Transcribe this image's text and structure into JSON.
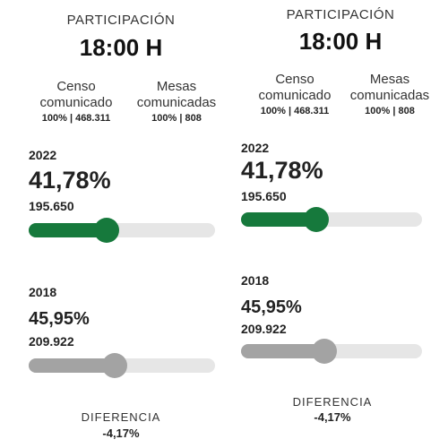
{
  "colors": {
    "current": "#16793c",
    "previous": "#a3a3a3",
    "track": "#e6e6e6"
  },
  "panels": [
    {
      "title": "PARTICIPACIÓN",
      "time": "18:00 H",
      "censo": {
        "label_line1": "Censo",
        "label_line2": "comunicado",
        "value": "100% | 468.311"
      },
      "mesas": {
        "label_line1": "Mesas",
        "label_line2": "comunicadas",
        "value": "100% | 808"
      },
      "current": {
        "year": "2022",
        "percent": "41,78%",
        "votes": "195.650",
        "fill_fraction": 0.4178
      },
      "previous": {
        "year": "2018",
        "percent": "45,95%",
        "votes": "209.922",
        "fill_fraction": 0.4595
      },
      "diferencia": {
        "label": "DIFERENCIA",
        "value": "-4,17%"
      }
    },
    {
      "title": "PARTICIPACIÓN",
      "time": "18:00 H",
      "censo": {
        "label_line1": "Censo",
        "label_line2": "comunicado",
        "value": "100% | 468.311"
      },
      "mesas": {
        "label_line1": "Mesas",
        "label_line2": "comunicadas",
        "value": "100% | 808"
      },
      "current": {
        "year": "2022",
        "percent": "41,78%",
        "votes": "195.650",
        "fill_fraction": 0.4178
      },
      "previous": {
        "year": "2018",
        "percent": "45,95%",
        "votes": "209.922",
        "fill_fraction": 0.4595
      },
      "diferencia": {
        "label": "DIFERENCIA",
        "value": "-4,17%"
      }
    }
  ]
}
